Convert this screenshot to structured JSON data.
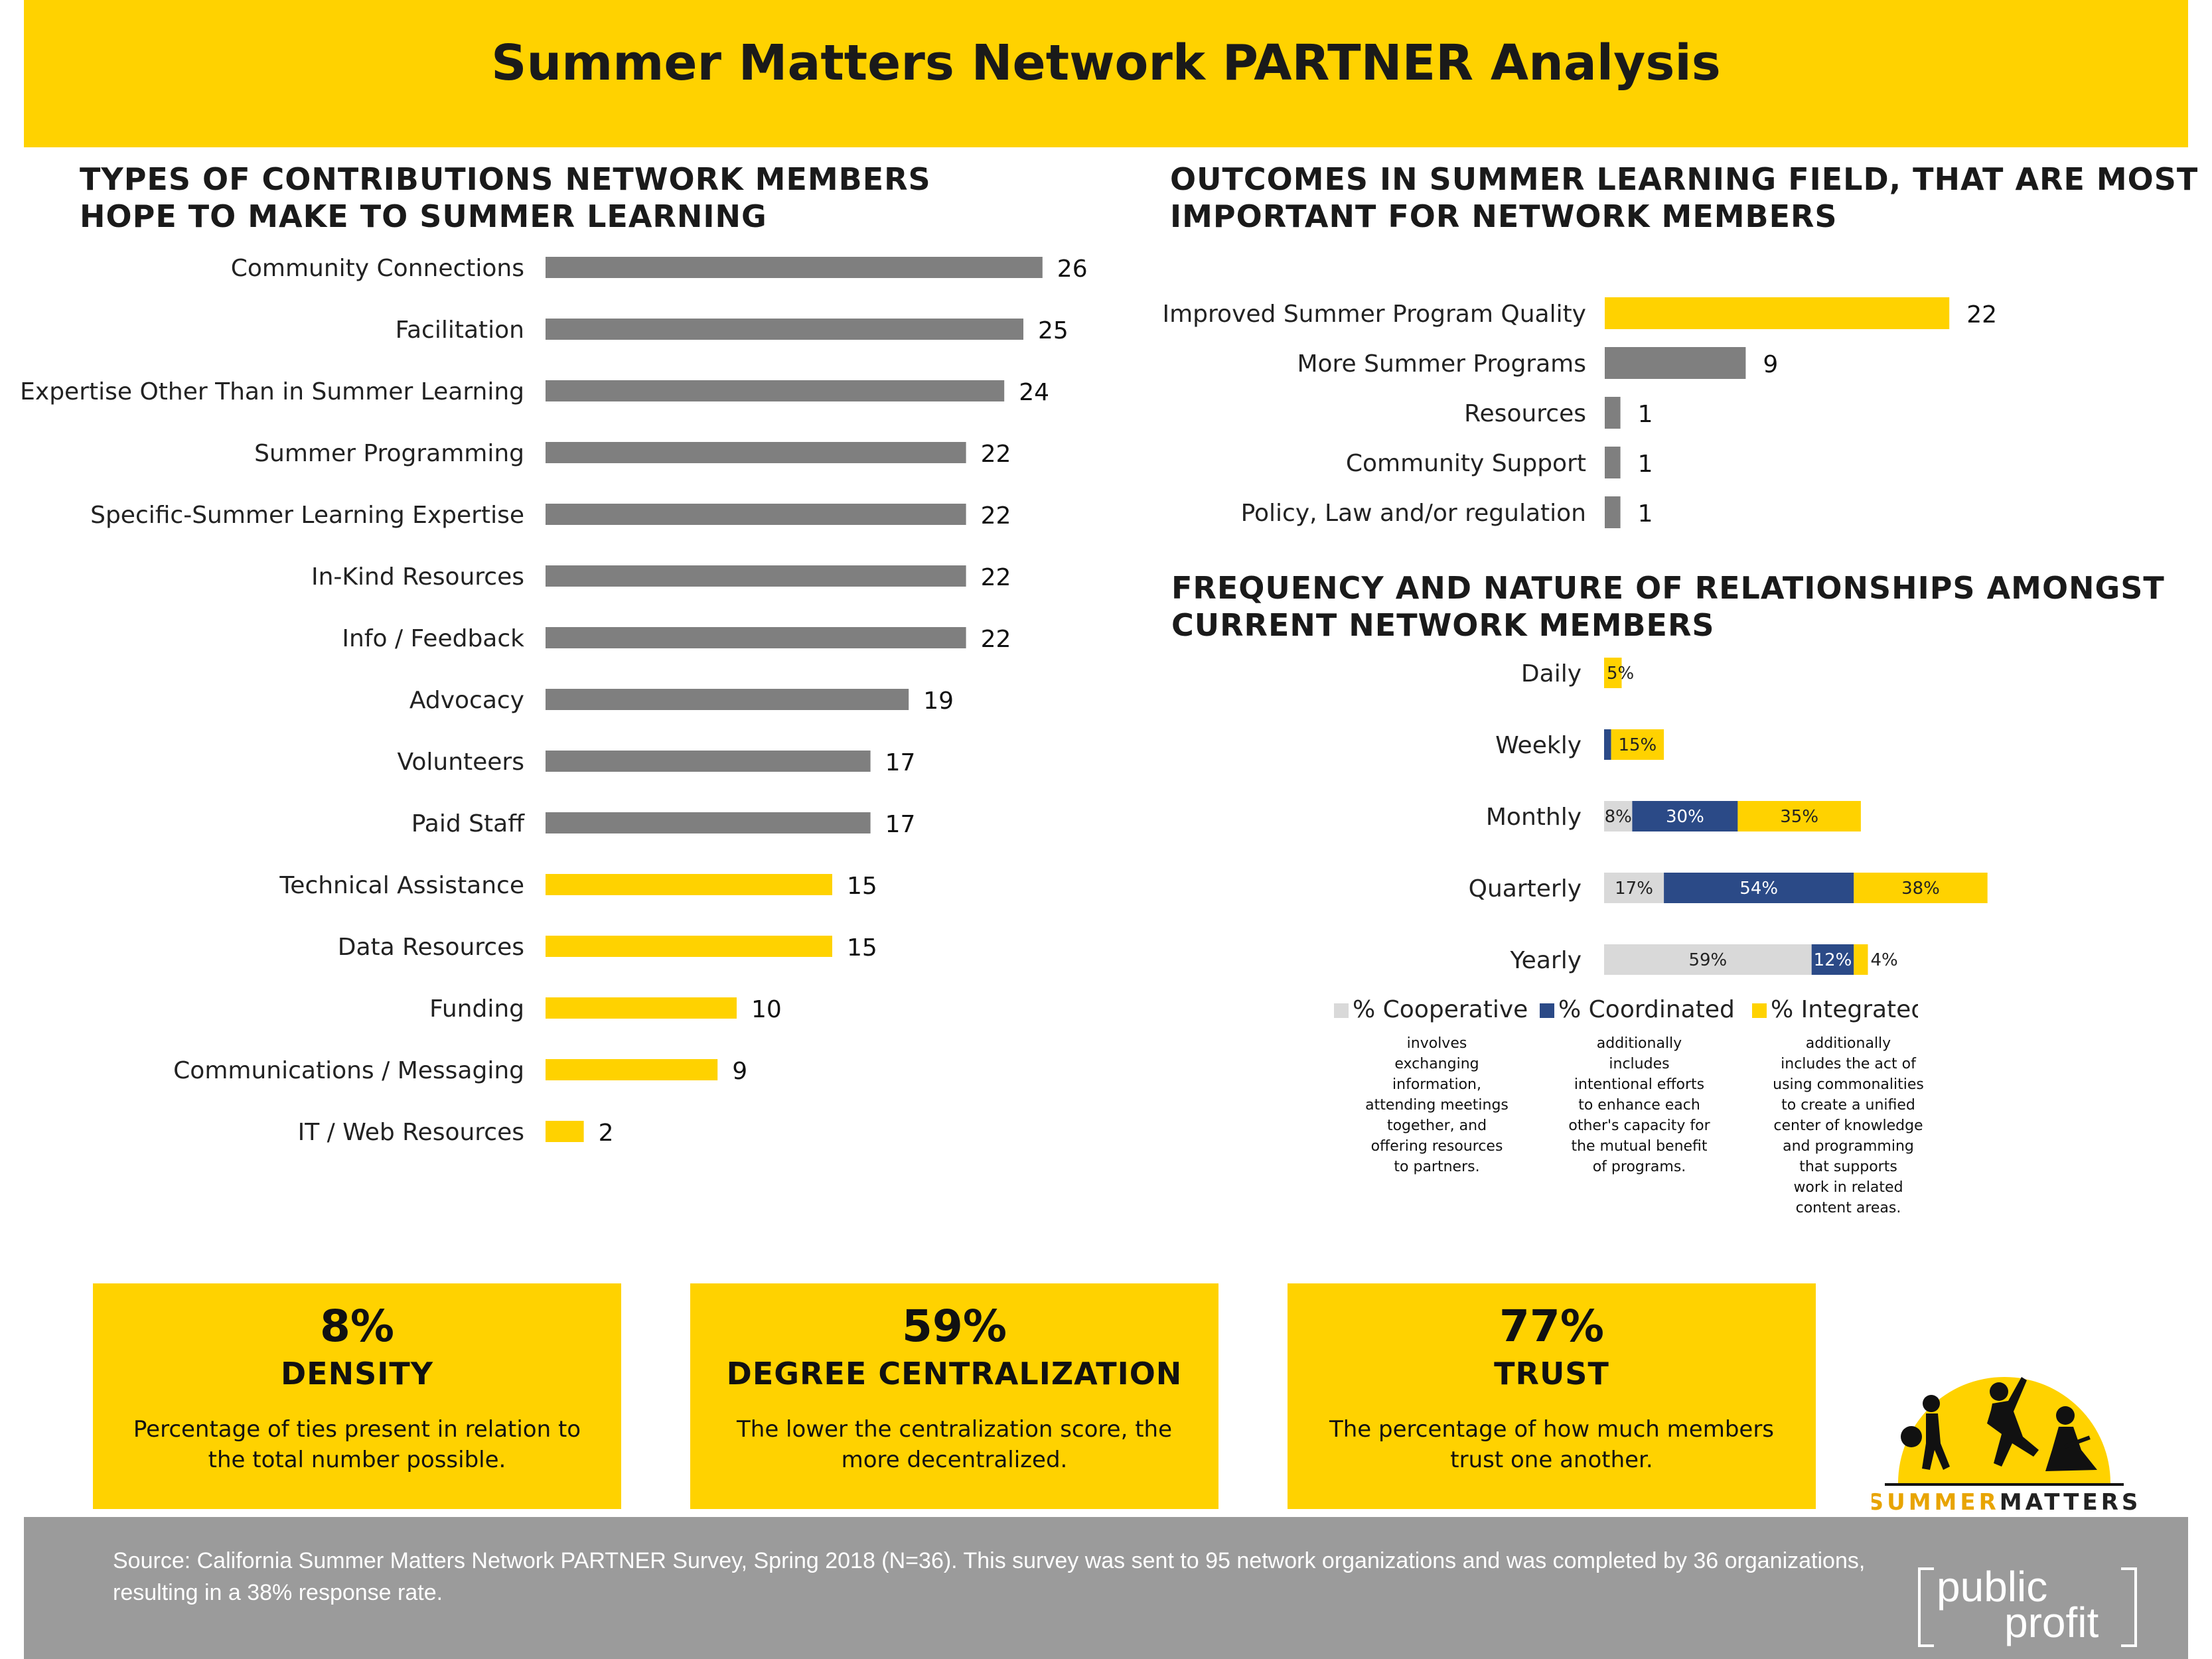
{
  "header": {
    "title": "Summer Matters Network PARTNER Analysis"
  },
  "contributions": {
    "title_lines": [
      "TYPES OF CONTRIBUTIONS NETWORK MEMBERS",
      "HOPE TO MAKE TO SUMMER LEARNING"
    ]
  },
  "outcomes": {
    "title_lines": [
      "OUTCOMES IN SUMMER LEARNING FIELD, THAT ARE MOST",
      "IMPORTANT FOR NETWORK MEMBERS"
    ]
  },
  "relationships": {
    "title_lines": [
      "FREQUENCY AND NATURE OF RELATIONSHIPS AMONGST",
      "CURRENT NETWORK MEMBERS"
    ],
    "legend": [
      {
        "name": "% Cooperative",
        "color": "#d9d9d9",
        "desc": [
          "involves",
          "exchanging",
          "information,",
          "attending meetings",
          "together, and",
          "offering resources",
          "to partners."
        ]
      },
      {
        "name": "% Coordinated",
        "color": "#2b4a87",
        "desc": [
          "additionally",
          "includes",
          "intentional efforts",
          "to enhance each",
          "other's capacity for",
          "the mutual benefit",
          "of programs."
        ]
      },
      {
        "name": "% Integrated",
        "color": "#FFD200",
        "desc": [
          "additionally",
          "includes the act of",
          "using commonalities",
          "to create a unified",
          "center of knowledge",
          "and programming",
          "that supports",
          "work in related",
          "content areas."
        ]
      }
    ]
  },
  "metrics": [
    {
      "value": "8%",
      "label": "DENSITY",
      "desc": "Percentage of ties present in relation to the total number possible."
    },
    {
      "value": "59%",
      "label": "DEGREE CENTRALIZATION",
      "desc": "The lower the centralization score, the more decentralized."
    },
    {
      "value": "77%",
      "label": "TRUST",
      "desc": "The percentage of how much members trust one another."
    }
  ],
  "footer": {
    "source": "Source: California Summer Matters Network PARTNER Survey, Spring 2018 (N=36). This survey was sent to 95 network organizations and was completed by 36 organizations, resulting in a 38% response rate."
  },
  "logos": {
    "summer_matters": {
      "part1": "SUMMER",
      "part2": "MATTERS"
    },
    "public_profit": {
      "line1": "public",
      "line2": "profit"
    }
  },
  "colors": {
    "yellow": "#FFD200",
    "gray": "#7f7f7f",
    "light_gray": "#d9d9d9",
    "navy": "#2b4a87"
  },
  "chart_data": [
    {
      "type": "bar",
      "orientation": "horizontal",
      "categories": [
        "Community Connections",
        "Facilitation",
        "Expertise Other Than in Summer Learning",
        "Summer Programming",
        "Specific-Summer Learning Expertise",
        "In-Kind Resources",
        "Info / Feedback",
        "Advocacy",
        "Volunteers",
        "Paid Staff",
        "Technical Assistance",
        "Data Resources",
        "Funding",
        "Communications / Messaging",
        "IT / Web Resources"
      ],
      "values": [
        26,
        25,
        24,
        22,
        22,
        22,
        22,
        19,
        17,
        17,
        15,
        15,
        10,
        9,
        2
      ],
      "bar_colors": [
        "#7f7f7f",
        "#7f7f7f",
        "#7f7f7f",
        "#7f7f7f",
        "#7f7f7f",
        "#7f7f7f",
        "#7f7f7f",
        "#7f7f7f",
        "#7f7f7f",
        "#7f7f7f",
        "#FFD200",
        "#FFD200",
        "#FFD200",
        "#FFD200",
        "#FFD200"
      ]
    },
    {
      "type": "bar",
      "orientation": "horizontal",
      "categories": [
        "Improved Summer Program Quality",
        "More Summer Programs",
        "Resources",
        "Community Support",
        "Policy, Law and/or regulation"
      ],
      "values": [
        22,
        9,
        1,
        1,
        1
      ],
      "bar_colors": [
        "#FFD200",
        "#7f7f7f",
        "#7f7f7f",
        "#7f7f7f",
        "#7f7f7f"
      ]
    },
    {
      "type": "bar",
      "orientation": "horizontal",
      "stacked": true,
      "categories": [
        "Daily",
        "Weekly",
        "Monthly",
        "Quarterly",
        "Yearly"
      ],
      "series": [
        {
          "name": "% Cooperative",
          "values": [
            0,
            0,
            8,
            17,
            59
          ],
          "labels": [
            "",
            "",
            "8%",
            "17%",
            "59%"
          ]
        },
        {
          "name": "% Coordinated",
          "values": [
            0,
            2,
            30,
            54,
            12
          ],
          "labels": [
            "",
            "",
            "30%",
            "54%",
            "12%"
          ]
        },
        {
          "name": "% Integrated",
          "values": [
            5,
            15,
            35,
            38,
            4
          ],
          "labels": [
            "5%",
            "15%",
            "35%",
            "38%",
            "4%"
          ]
        }
      ]
    }
  ]
}
